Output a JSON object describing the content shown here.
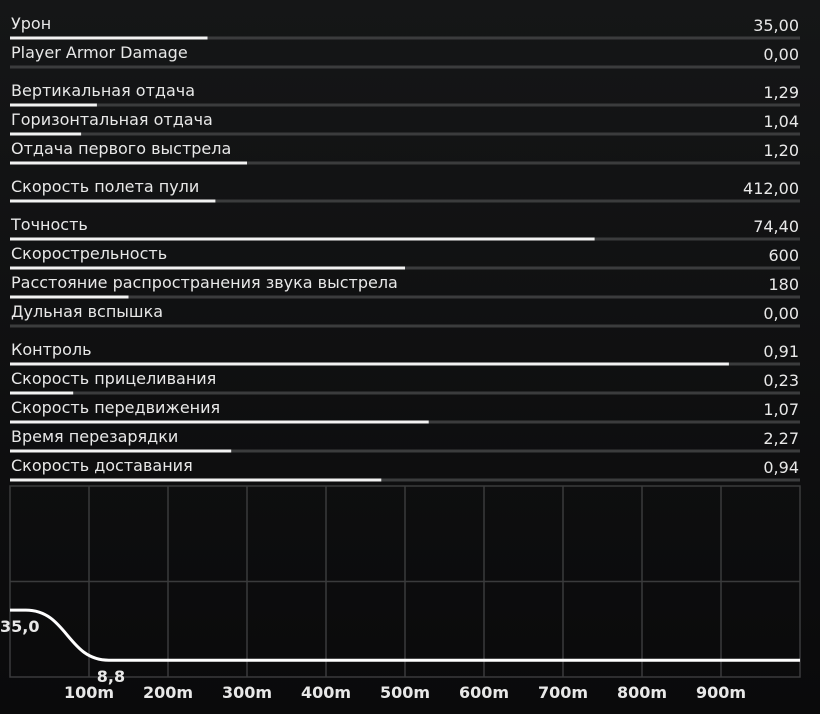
{
  "stats": {
    "groups": [
      [
        {
          "label": "Урон",
          "value": "35,00",
          "bar": 0.25
        },
        {
          "label": "Player Armor Damage",
          "value": "0,00",
          "bar": 0
        }
      ],
      [
        {
          "label": "Вертикальная отдача",
          "value": "1,29",
          "bar": 0.11
        },
        {
          "label": "Горизонтальная отдача",
          "value": "1,04",
          "bar": 0.09
        },
        {
          "label": "Отдача первого выстрела",
          "value": "1,20",
          "bar": 0.3
        }
      ],
      [
        {
          "label": "Скорость полета пули",
          "value": "412,00",
          "bar": 0.26
        }
      ],
      [
        {
          "label": "Точность",
          "value": "74,40",
          "bar": 0.74
        },
        {
          "label": "Скорострельность",
          "value": "600",
          "bar": 0.5
        },
        {
          "label": "Расстояние распространения звука выстрела",
          "value": "180",
          "bar": 0.15
        },
        {
          "label": "Дульная вспышка",
          "value": "0,00",
          "bar": 0
        }
      ],
      [
        {
          "label": "Контроль",
          "value": "0,91",
          "bar": 0.91
        },
        {
          "label": "Скорость прицеливания",
          "value": "0,23",
          "bar": 0.08
        },
        {
          "label": "Скорость передвижения",
          "value": "1,07",
          "bar": 0.53
        },
        {
          "label": "Время перезарядки",
          "value": "2,27",
          "bar": 0.28
        },
        {
          "label": "Скорость доставания",
          "value": "0,94",
          "bar": 0.47
        }
      ]
    ]
  },
  "chart_data": {
    "type": "line",
    "x": [
      0,
      20,
      125,
      1000
    ],
    "values": [
      35,
      35,
      8.8,
      8.8
    ],
    "value_labels": [
      "35,0",
      null,
      "8,8",
      null
    ],
    "color": "#ffffff",
    "xlim": [
      0,
      1000
    ],
    "xticks": [
      {
        "value": 100,
        "label": "100m"
      },
      {
        "value": 200,
        "label": "200m"
      },
      {
        "value": 300,
        "label": "300m"
      },
      {
        "value": 400,
        "label": "400m"
      },
      {
        "value": 500,
        "label": "500m"
      },
      {
        "value": 600,
        "label": "600m"
      },
      {
        "value": 700,
        "label": "700m"
      },
      {
        "value": 800,
        "label": "800m"
      },
      {
        "value": 900,
        "label": "900m"
      }
    ],
    "ylim": [
      0,
      100
    ],
    "ygrid": [
      50
    ],
    "grid": true
  }
}
